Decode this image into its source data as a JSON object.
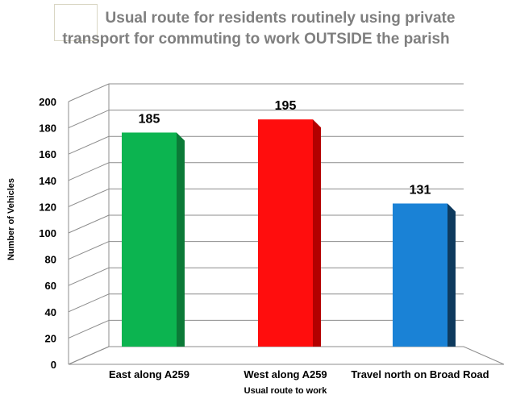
{
  "chart_data": {
    "type": "bar",
    "title_line1": "Usual route for residents routinely using private",
    "title_line2": "transport for commuting to work OUTSIDE the parish",
    "xlabel": "Usual route to work",
    "ylabel": "Number of Vehicles",
    "categories": [
      "East along A259",
      "West along A259",
      "Travel north on Broad Road"
    ],
    "values": [
      185,
      195,
      131
    ],
    "ylim": [
      0,
      200
    ],
    "yticks": [
      0,
      20,
      40,
      60,
      80,
      100,
      120,
      140,
      160,
      180,
      200
    ],
    "grid": true,
    "legend": "none",
    "colors": {
      "bars": [
        "#0cb450",
        "#ff0d0d",
        "#1a82d6"
      ],
      "bar_sides": [
        "#0b7a37",
        "#b30000",
        "#0e3a5e"
      ],
      "grid": "#8c8c8c",
      "title": "#7f7f7f"
    }
  }
}
